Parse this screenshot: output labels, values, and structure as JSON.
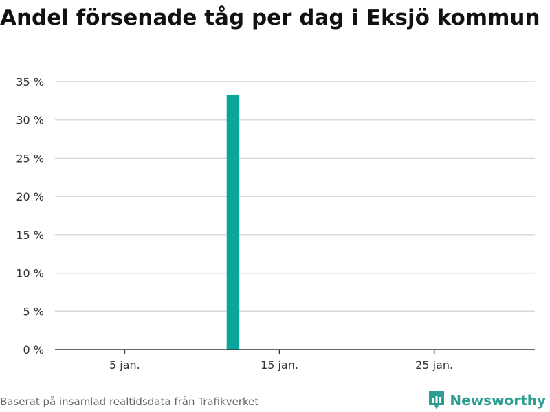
{
  "header": {
    "title": "Andel försenade tåg per dag i Eksjö kommun"
  },
  "footer": {
    "source": "Baserat på insamlad realtidsdata från Trafikverket",
    "brand": "Newsworthy"
  },
  "colors": {
    "bar": "#0aa69b",
    "grid": "#d9d9d9",
    "axis": "#333333",
    "brand": "#2e9e93"
  },
  "icons": {
    "brand_logo": "newsworthy-logo-icon"
  },
  "chart_data": {
    "type": "bar",
    "title": "Andel försenade tåg per dag i Eksjö kommun",
    "xlabel": "",
    "ylabel": "",
    "x_unit": "day of January",
    "x_range": [
      1,
      31
    ],
    "ylim": [
      0,
      35
    ],
    "y_ticks": [
      {
        "value": 0,
        "label": "0 %"
      },
      {
        "value": 5,
        "label": "5 %"
      },
      {
        "value": 10,
        "label": "10 %"
      },
      {
        "value": 15,
        "label": "15 %"
      },
      {
        "value": 20,
        "label": "20 %"
      },
      {
        "value": 25,
        "label": "25 %"
      },
      {
        "value": 30,
        "label": "30 %"
      },
      {
        "value": 35,
        "label": "35 %"
      }
    ],
    "x_ticks": [
      {
        "value": 5,
        "label": "5 jan."
      },
      {
        "value": 15,
        "label": "15 jan."
      },
      {
        "value": 25,
        "label": "25 jan."
      }
    ],
    "grid": true,
    "legend": "none",
    "bars": [
      {
        "day": 12,
        "value": 33.3
      }
    ]
  }
}
